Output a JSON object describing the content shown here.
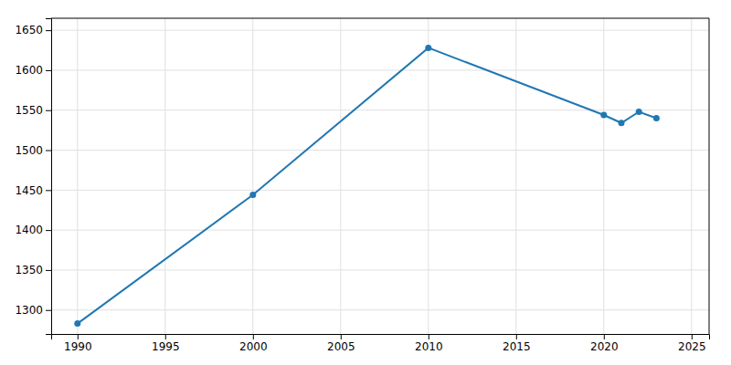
{
  "chart_data": {
    "type": "line",
    "x": [
      1990,
      2000,
      2010,
      2020,
      2021,
      2022,
      2023
    ],
    "values": [
      1283,
      1444,
      1628,
      1544,
      1534,
      1548,
      1540
    ],
    "xlim": [
      1988.5,
      2026
    ],
    "ylim": [
      1270,
      1665
    ],
    "xticks": [
      1990,
      1995,
      2000,
      2005,
      2010,
      2015,
      2020,
      2025
    ],
    "yticks": [
      1300,
      1350,
      1400,
      1450,
      1500,
      1550,
      1600,
      1650
    ],
    "grid": true,
    "marker": "circle"
  }
}
